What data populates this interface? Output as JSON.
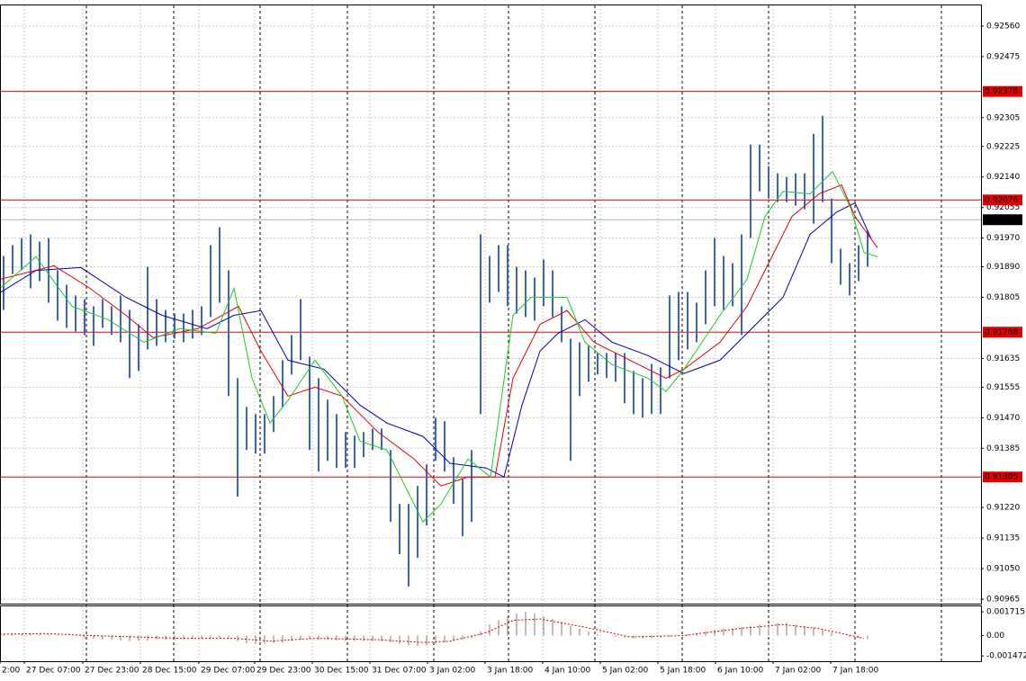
{
  "chart_data": [
    {
      "type": "price",
      "xlim": [
        -0.4,
        108.6
      ],
      "ylim": [
        0.909525,
        0.926175
      ],
      "grid": true,
      "yticks": [
        {
          "value": 0.9256,
          "label": "0.92560"
        },
        0.92475,
        0.92305,
        0.92225,
        {
          "value": 0.9214,
          "label": "0.92140"
        },
        0.92055,
        {
          "value": 0.9197,
          "label": "0.91970"
        },
        {
          "value": 0.9189,
          "label": "0.91890"
        },
        0.91805,
        0.91635,
        0.91555,
        {
          "value": 0.9147,
          "label": "0.91470"
        },
        0.91385,
        {
          "value": 0.9122,
          "label": "0.91220"
        },
        0.91135,
        {
          "value": 0.9105,
          "label": "0.91050"
        },
        0.90965
      ],
      "xticks": [
        {
          "value": -0.4,
          "label": "2:00"
        },
        {
          "value": 2.3,
          "label": "27 Dec 07:00"
        },
        {
          "value": 8.8,
          "label": "27 Dec 23:00"
        },
        {
          "value": 15.2,
          "label": "28 Dec 15:00"
        },
        {
          "value": 21.7,
          "label": "29 Dec 07:00"
        },
        {
          "value": 27.9,
          "label": "29 Dec 23:00"
        },
        {
          "value": 34.3,
          "label": "30 Dec 15:00"
        },
        {
          "value": 40.7,
          "label": "31 Dec 07:00"
        },
        {
          "value": 47.1,
          "label": "3 Jan 02:00"
        },
        {
          "value": 53.5,
          "label": "3 Jan 18:00"
        },
        {
          "value": 59.9,
          "label": "4 Jan 10:00"
        },
        {
          "value": 66.3,
          "label": "5 Jan 02:00"
        },
        {
          "value": 72.7,
          "label": "5 Jan 18:00"
        },
        {
          "value": 79.1,
          "label": "6 Jan 10:00"
        },
        {
          "value": 85.5,
          "label": "7 Jan 02:00"
        },
        {
          "value": 91.9,
          "label": "7 Jan 18:00"
        }
      ],
      "bars": {
        "color": "#3b63c9",
        "x": [
          0,
          1,
          2,
          3,
          4,
          5,
          6,
          7,
          8,
          9,
          10,
          11,
          12,
          13,
          14,
          15,
          16,
          17,
          18,
          19,
          20,
          21,
          22,
          23,
          24,
          25,
          26,
          27,
          28,
          29,
          30,
          31,
          32,
          33,
          34,
          35,
          36,
          37,
          38,
          39,
          40,
          41,
          42,
          43,
          44,
          45,
          46,
          47,
          48,
          49,
          50,
          51,
          52,
          53,
          54,
          55,
          56,
          57,
          58,
          59,
          60,
          61,
          62,
          63,
          64,
          65,
          66,
          67,
          68,
          69,
          70,
          71,
          72,
          73,
          74,
          75,
          76,
          77,
          78,
          79,
          80,
          81,
          82,
          83,
          84,
          85,
          86,
          87,
          88,
          89,
          90,
          91,
          92,
          93,
          94,
          95,
          96
        ],
        "high": [
          0.9192,
          0.9195,
          0.9197,
          0.9198,
          0.9196,
          0.9197,
          0.9188,
          0.9184,
          0.9181,
          0.918,
          0.9178,
          0.918,
          0.9178,
          0.9181,
          0.9177,
          0.9173,
          0.9189,
          0.918,
          0.9177,
          0.9176,
          0.9176,
          0.9177,
          0.9178,
          0.9195,
          0.92,
          0.9188,
          0.9158,
          0.915,
          0.9148,
          0.9148,
          0.9153,
          0.9163,
          0.917,
          0.918,
          0.9164,
          0.9158,
          0.9152,
          0.9148,
          0.9143,
          0.9142,
          0.9143,
          0.9144,
          0.9144,
          0.9138,
          0.9123,
          0.9123,
          0.9128,
          0.9134,
          0.9147,
          0.9146,
          0.9136,
          0.913,
          0.9138,
          0.9198,
          0.9192,
          0.9195,
          0.9195,
          0.9189,
          0.9188,
          0.9186,
          0.9191,
          0.9188,
          0.9178,
          0.9169,
          0.9168,
          0.9167,
          0.9165,
          0.9165,
          0.9165,
          0.9165,
          0.916,
          0.9158,
          0.9162,
          0.9161,
          0.9181,
          0.9182,
          0.9182,
          0.9179,
          0.9188,
          0.9197,
          0.9192,
          0.919,
          0.9198,
          0.9223,
          0.9223,
          0.9217,
          0.9215,
          0.9214,
          0.9215,
          0.9215,
          0.9226,
          0.9231,
          0.9208,
          0.9194,
          0.919,
          0.9195,
          0.9199
        ],
        "low": [
          0.9177,
          0.9187,
          0.9188,
          0.9183,
          0.9185,
          0.9179,
          0.9174,
          0.9172,
          0.9171,
          0.917,
          0.9167,
          0.9172,
          0.917,
          0.9168,
          0.9158,
          0.916,
          0.9166,
          0.9167,
          0.9168,
          0.9169,
          0.9168,
          0.9169,
          0.917,
          0.9175,
          0.9179,
          0.9153,
          0.9125,
          0.9138,
          0.9137,
          0.9137,
          0.9143,
          0.915,
          0.9159,
          0.9163,
          0.9138,
          0.9132,
          0.9135,
          0.9133,
          0.9133,
          0.9133,
          0.9136,
          0.9138,
          0.9138,
          0.9118,
          0.9109,
          0.91,
          0.9108,
          0.9117,
          0.9135,
          0.9132,
          0.9123,
          0.9114,
          0.9118,
          0.9148,
          0.9179,
          0.9182,
          0.9178,
          0.9176,
          0.9175,
          0.9174,
          0.9178,
          0.9175,
          0.9168,
          0.9135,
          0.9153,
          0.9157,
          0.9159,
          0.9158,
          0.9157,
          0.9151,
          0.9148,
          0.9147,
          0.9148,
          0.9148,
          0.9158,
          0.9163,
          0.9166,
          0.9168,
          0.9173,
          0.9178,
          0.9177,
          0.9178,
          0.917,
          0.9197,
          0.921,
          0.9208,
          0.9207,
          0.9207,
          0.9206,
          0.9205,
          0.9201,
          0.9207,
          0.919,
          0.9184,
          0.9181,
          0.9185,
          0.9189
        ]
      },
      "lines": [
        {
          "color": "#0000a8",
          "x": [
            -0.4,
            3.6,
            8.6,
            13.6,
            17.6,
            22.6,
            25.6,
            28.6,
            31.6,
            35.6,
            39.6,
            42.6,
            46.6,
            49.6,
            53.6,
            55.6,
            57.6,
            59.6,
            61.6,
            64.6,
            67.6,
            71.6,
            75.6,
            79.6,
            84.6,
            86.6,
            89.6,
            92.6,
            94.6,
            96.4
          ],
          "values": [
            0.91818,
            0.9188,
            0.91888,
            0.91805,
            0.91755,
            0.91718,
            0.91755,
            0.91768,
            0.9163,
            0.91605,
            0.91505,
            0.91455,
            0.91418,
            0.91343,
            0.9133,
            0.91305,
            0.91505,
            0.91655,
            0.91705,
            0.91743,
            0.9168,
            0.91643,
            0.91593,
            0.9163,
            0.91755,
            0.91805,
            0.9198,
            0.92043,
            0.92068,
            0.91968
          ]
        },
        {
          "color": "#e00000",
          "x": [
            -0.4,
            5.6,
            9.6,
            13.6,
            16.6,
            21.6,
            26.1,
            28.6,
            31.6,
            34.6,
            37.6,
            41.6,
            45.6,
            48.6,
            51.6,
            54.6,
            56.6,
            59.6,
            62.6,
            65.6,
            69.6,
            73.6,
            75.6,
            79.6,
            82.6,
            85.6,
            87.6,
            90.6,
            93.1,
            94.6,
            97.1
          ],
          "values": [
            0.91855,
            0.91893,
            0.9183,
            0.91755,
            0.91693,
            0.91718,
            0.9178,
            0.91655,
            0.9153,
            0.91555,
            0.9153,
            0.9143,
            0.91355,
            0.9128,
            0.91305,
            0.91305,
            0.9158,
            0.9173,
            0.91768,
            0.9168,
            0.9163,
            0.9158,
            0.91605,
            0.9168,
            0.9178,
            0.9193,
            0.9203,
            0.92093,
            0.92118,
            0.9203,
            0.91943
          ]
        },
        {
          "color": "#1ccc1c",
          "x": [
            -0.4,
            3.6,
            7.6,
            11.6,
            15.6,
            19.6,
            23.6,
            25.6,
            27.6,
            29.6,
            31.6,
            34.6,
            37.6,
            39.6,
            42.6,
            46.6,
            48.6,
            51.6,
            54.1,
            56.6,
            58.6,
            62.6,
            64.6,
            67.6,
            71.6,
            73.6,
            75.6,
            79.6,
            82.6,
            84.6,
            86.6,
            89.6,
            92.1,
            94.1,
            95.6,
            97.1
          ],
          "values": [
            0.9183,
            0.91918,
            0.9178,
            0.91743,
            0.9168,
            0.91718,
            0.91705,
            0.9183,
            0.9158,
            0.91455,
            0.91518,
            0.9163,
            0.9153,
            0.91405,
            0.9138,
            0.9118,
            0.9123,
            0.91355,
            0.91305,
            0.91755,
            0.91805,
            0.91805,
            0.9168,
            0.91618,
            0.9158,
            0.91543,
            0.91605,
            0.91755,
            0.91855,
            0.9203,
            0.921,
            0.92093,
            0.92155,
            0.92055,
            0.9193,
            0.91918
          ]
        }
      ],
      "levels": {
        "color": "#e00000",
        "values": [
          0.92378,
          0.92076,
          0.91708,
          0.91305
        ]
      },
      "last": {
        "color": "#000000",
        "value": 0.92021
      }
    },
    {
      "type": "macd",
      "xlim": [
        -0.4,
        108.6
      ],
      "ylim": [
        -0.00185,
        0.00211
      ],
      "yticks": [
        0.001715,
        {
          "value": 0,
          "label": "0.00"
        },
        -0.001472
      ],
      "histogram": {
        "color": "#a8a8a8",
        "x": [
          0,
          1,
          2,
          3,
          4,
          5,
          6,
          7,
          8,
          9,
          10,
          11,
          12,
          13,
          14,
          15,
          16,
          17,
          18,
          19,
          20,
          21,
          22,
          23,
          24,
          25,
          26,
          27,
          28,
          29,
          30,
          31,
          32,
          33,
          34,
          35,
          36,
          37,
          38,
          39,
          40,
          41,
          42,
          43,
          44,
          45,
          46,
          47,
          48,
          49,
          50,
          51,
          52,
          53,
          54,
          55,
          56,
          57,
          58,
          59,
          60,
          61,
          62,
          63,
          64,
          65,
          66,
          67,
          68,
          69,
          70,
          71,
          72,
          73,
          74,
          75,
          76,
          77,
          78,
          79,
          80,
          81,
          82,
          83,
          84,
          85,
          86,
          87,
          88,
          89,
          90,
          91,
          92,
          93,
          94,
          95,
          96
        ],
        "values": [
          0.0001,
          0.00012,
          0.00014,
          0.00014,
          0.00012,
          0.0001,
          5e-05,
          0,
          -5e-05,
          -0.0002,
          -0.00025,
          -0.0003,
          -0.0003,
          -0.00035,
          -0.0004,
          -0.0004,
          -0.00035,
          -0.0003,
          -0.0003,
          -0.0003,
          -0.00028,
          -0.00025,
          -0.00022,
          -0.0002,
          -0.00015,
          -0.0002,
          -0.0004,
          -0.00055,
          -0.0006,
          -0.0006,
          -0.00055,
          -0.0005,
          -0.0004,
          -0.0003,
          -0.00025,
          -0.0003,
          -0.0003,
          -0.00035,
          -0.0004,
          -0.0004,
          -0.0004,
          -0.0004,
          -0.0004,
          -0.0005,
          -0.0006,
          -0.0007,
          -0.00075,
          -0.0007,
          -0.0006,
          -0.0005,
          -0.0004,
          -0.0003,
          -0.0002,
          0.0003,
          0.0008,
          0.0011,
          0.0014,
          0.0016,
          0.0017,
          0.0016,
          0.0014,
          0.0012,
          0.001,
          0.0007,
          0.0005,
          0.0003,
          0.0001,
          0,
          -0.0001,
          -0.00015,
          -0.0002,
          -0.0002,
          -0.0002,
          -0.00015,
          -0.0001,
          0,
          0.0001,
          0.0002,
          0.0003,
          0.0004,
          0.0005,
          0.0005,
          0.0006,
          0.0007,
          0.0008,
          0.0008,
          0.0009,
          0.0009,
          0.0008,
          0.0007,
          0.0006,
          0.0004,
          0.0002,
          0,
          -0.0001,
          -0.0002,
          -0.00025
        ]
      },
      "signal": {
        "color": "#d00000",
        "x": [
          -0.4,
          4.6,
          9.6,
          19.6,
          25.6,
          29.6,
          34.6,
          41.6,
          46.6,
          49.6,
          53.6,
          56.6,
          59.6,
          64.6,
          69.6,
          75.6,
          81.6,
          86.6,
          90.6,
          95.6
        ],
        "values": [
          0.0001,
          0.00015,
          0,
          -0.0002,
          -0.0002,
          -0.0004,
          -0.0002,
          -0.0003,
          -0.0005,
          -0.0004,
          0.0002,
          0.0011,
          0.0012,
          0.0006,
          -0.0001,
          0,
          0.0005,
          0.0008,
          0.0005,
          -0.0002
        ]
      }
    }
  ]
}
